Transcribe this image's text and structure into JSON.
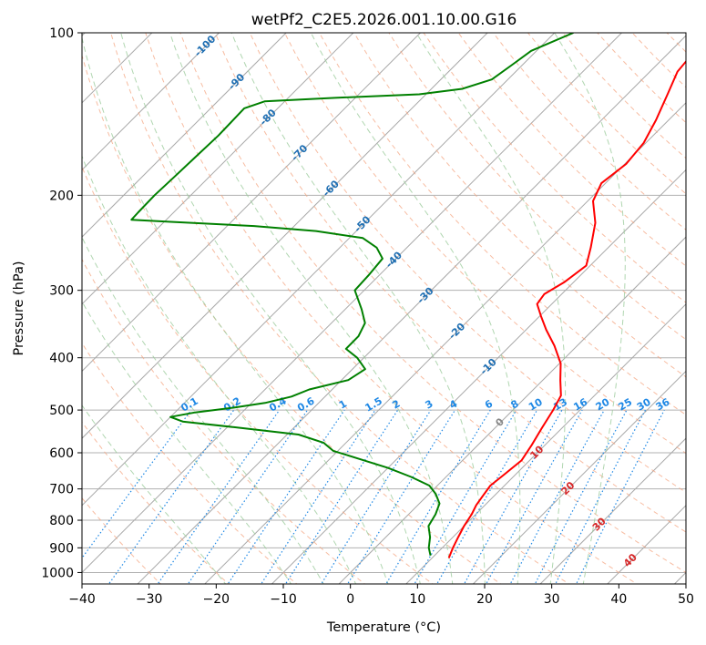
{
  "chart_data": {
    "type": "line",
    "subtype": "skew-t log-p diagram",
    "title": "wetPf2_C2E5.2026.001.10.00.G16",
    "xlabel": "Temperature (°C)",
    "ylabel": "Pressure (hPa)",
    "xlim": [
      -40,
      50
    ],
    "ylim": [
      1050,
      100
    ],
    "y_scale": "log",
    "x_ticks": [
      -40,
      -30,
      -20,
      -10,
      0,
      10,
      20,
      30,
      40,
      50
    ],
    "x_tick_labels": [
      "−40",
      "−30",
      "−20",
      "−10",
      "0",
      "10",
      "20",
      "30",
      "40",
      "50"
    ],
    "y_ticks": [
      100,
      200,
      300,
      400,
      500,
      600,
      700,
      800,
      900,
      1000
    ],
    "y_tick_labels": [
      "100",
      "200",
      "300",
      "400",
      "500",
      "600",
      "700",
      "800",
      "900",
      "1000"
    ],
    "grid": true,
    "series": [
      {
        "name": "Temperature",
        "color": "#ff0000",
        "points": [
          {
            "p": 940,
            "t": 12.5
          },
          {
            "p": 900,
            "t": 11.6
          },
          {
            "p": 860,
            "t": 10.8
          },
          {
            "p": 820,
            "t": 10.0
          },
          {
            "p": 780,
            "t": 9.4
          },
          {
            "p": 750,
            "t": 8.7
          },
          {
            "p": 720,
            "t": 8.3
          },
          {
            "p": 690,
            "t": 7.9
          },
          {
            "p": 660,
            "t": 8.3
          },
          {
            "p": 620,
            "t": 8.8
          },
          {
            "p": 580,
            "t": 8.0
          },
          {
            "p": 540,
            "t": 7.0
          },
          {
            "p": 500,
            "t": 6.0
          },
          {
            "p": 470,
            "t": 5.0
          },
          {
            "p": 440,
            "t": 2.6
          },
          {
            "p": 410,
            "t": 0.2
          },
          {
            "p": 380,
            "t": -3.4
          },
          {
            "p": 355,
            "t": -7.0
          },
          {
            "p": 335,
            "t": -9.8
          },
          {
            "p": 318,
            "t": -12.2
          },
          {
            "p": 305,
            "t": -12.6
          },
          {
            "p": 290,
            "t": -11.4
          },
          {
            "p": 270,
            "t": -10.6
          },
          {
            "p": 250,
            "t": -12.6
          },
          {
            "p": 225,
            "t": -15.6
          },
          {
            "p": 205,
            "t": -19.2
          },
          {
            "p": 190,
            "t": -20.6
          },
          {
            "p": 175,
            "t": -19.8
          },
          {
            "p": 160,
            "t": -20.3
          },
          {
            "p": 145,
            "t": -21.9
          },
          {
            "p": 130,
            "t": -24.0
          },
          {
            "p": 118,
            "t": -25.9
          },
          {
            "p": 108,
            "t": -26.4
          },
          {
            "p": 100,
            "t": -27.2
          }
        ]
      },
      {
        "name": "Dewpoint",
        "color": "#008000",
        "points": [
          {
            "p": 930,
            "t": 9.4
          },
          {
            "p": 900,
            "t": 8.0
          },
          {
            "p": 860,
            "t": 6.6
          },
          {
            "p": 820,
            "t": 4.7
          },
          {
            "p": 780,
            "t": 4.0
          },
          {
            "p": 745,
            "t": 3.0
          },
          {
            "p": 715,
            "t": 1.0
          },
          {
            "p": 690,
            "t": -1.2
          },
          {
            "p": 665,
            "t": -5.2
          },
          {
            "p": 640,
            "t": -10.0
          },
          {
            "p": 615,
            "t": -15.8
          },
          {
            "p": 595,
            "t": -20.7
          },
          {
            "p": 575,
            "t": -23.3
          },
          {
            "p": 555,
            "t": -28.3
          },
          {
            "p": 538,
            "t": -39.0
          },
          {
            "p": 525,
            "t": -47.5
          },
          {
            "p": 515,
            "t": -50.0
          },
          {
            "p": 505,
            "t": -47.0
          },
          {
            "p": 495,
            "t": -42.0
          },
          {
            "p": 485,
            "t": -38.0
          },
          {
            "p": 472,
            "t": -35.0
          },
          {
            "p": 458,
            "t": -33.4
          },
          {
            "p": 440,
            "t": -29.0
          },
          {
            "p": 420,
            "t": -28.1
          },
          {
            "p": 400,
            "t": -31.0
          },
          {
            "p": 385,
            "t": -34.0
          },
          {
            "p": 365,
            "t": -34.0
          },
          {
            "p": 345,
            "t": -35.0
          },
          {
            "p": 325,
            "t": -37.6
          },
          {
            "p": 300,
            "t": -41.4
          },
          {
            "p": 280,
            "t": -41.6
          },
          {
            "p": 262,
            "t": -42.0
          },
          {
            "p": 250,
            "t": -44.5
          },
          {
            "p": 240,
            "t": -48.0
          },
          {
            "p": 233,
            "t": -56.0
          },
          {
            "p": 228,
            "t": -66.0
          },
          {
            "p": 224,
            "t": -79.0
          },
          {
            "p": 222,
            "t": -85.2
          },
          {
            "p": 215,
            "t": -85.3
          },
          {
            "p": 200,
            "t": -85.4
          },
          {
            "p": 185,
            "t": -85.2
          },
          {
            "p": 170,
            "t": -85.0
          },
          {
            "p": 155,
            "t": -84.8
          },
          {
            "p": 145,
            "t": -84.9
          },
          {
            "p": 138,
            "t": -85.0
          },
          {
            "p": 134,
            "t": -83.0
          },
          {
            "p": 132,
            "t": -73.0
          },
          {
            "p": 130,
            "t": -61.0
          },
          {
            "p": 127,
            "t": -55.4
          },
          {
            "p": 122,
            "t": -52.4
          },
          {
            "p": 115,
            "t": -51.6
          },
          {
            "p": 108,
            "t": -50.8
          },
          {
            "p": 100,
            "t": -47.2
          }
        ]
      }
    ],
    "dry_adiabats": {
      "color": "#f4a582",
      "style": "dashed",
      "theta_c": [
        -30,
        -20,
        -10,
        0,
        10,
        20,
        30,
        40,
        50,
        60,
        70,
        80,
        90,
        100,
        110,
        120,
        130,
        140,
        150,
        160,
        170,
        180,
        190,
        200
      ]
    },
    "moist_adiabats": {
      "color": "#9ccc9c",
      "style": "dashed",
      "theta_w_c": [
        -20,
        -10,
        -5,
        0,
        5,
        10,
        15,
        20,
        25,
        30,
        35
      ]
    },
    "mixing_ratio_lines": {
      "color": "#1e88e5",
      "style": "dotted",
      "values_gkg": [
        0.1,
        0.2,
        0.4,
        0.6,
        1,
        1.5,
        2,
        3,
        4,
        6,
        8,
        10,
        13,
        16,
        20,
        25,
        30,
        36
      ],
      "labels": [
        "0.1",
        "0.2",
        "0.4",
        "0.6",
        "1",
        "1.5",
        "2",
        "3",
        "4",
        "6",
        "8",
        "10",
        "13",
        "16",
        "20",
        "25",
        "30",
        "36"
      ],
      "label_pressure_hpa": 500
    },
    "isotherm_labels": {
      "blue": {
        "color": "#1f6fb3",
        "values": [
          -100,
          -90,
          -80,
          -70,
          -60,
          -50,
          -40,
          -30,
          -20,
          -10
        ],
        "labels": [
          "-100",
          "-90",
          "-80",
          "-70",
          "-60",
          "-50",
          "-40",
          "-30",
          "-20",
          "-10"
        ]
      },
      "gray": {
        "color": "#888888",
        "values": [
          0
        ],
        "labels": [
          "0"
        ]
      },
      "red": {
        "color": "#d62728",
        "values": [
          10,
          20,
          30,
          40
        ],
        "labels": [
          "10",
          "20",
          "30",
          "40"
        ]
      }
    }
  }
}
